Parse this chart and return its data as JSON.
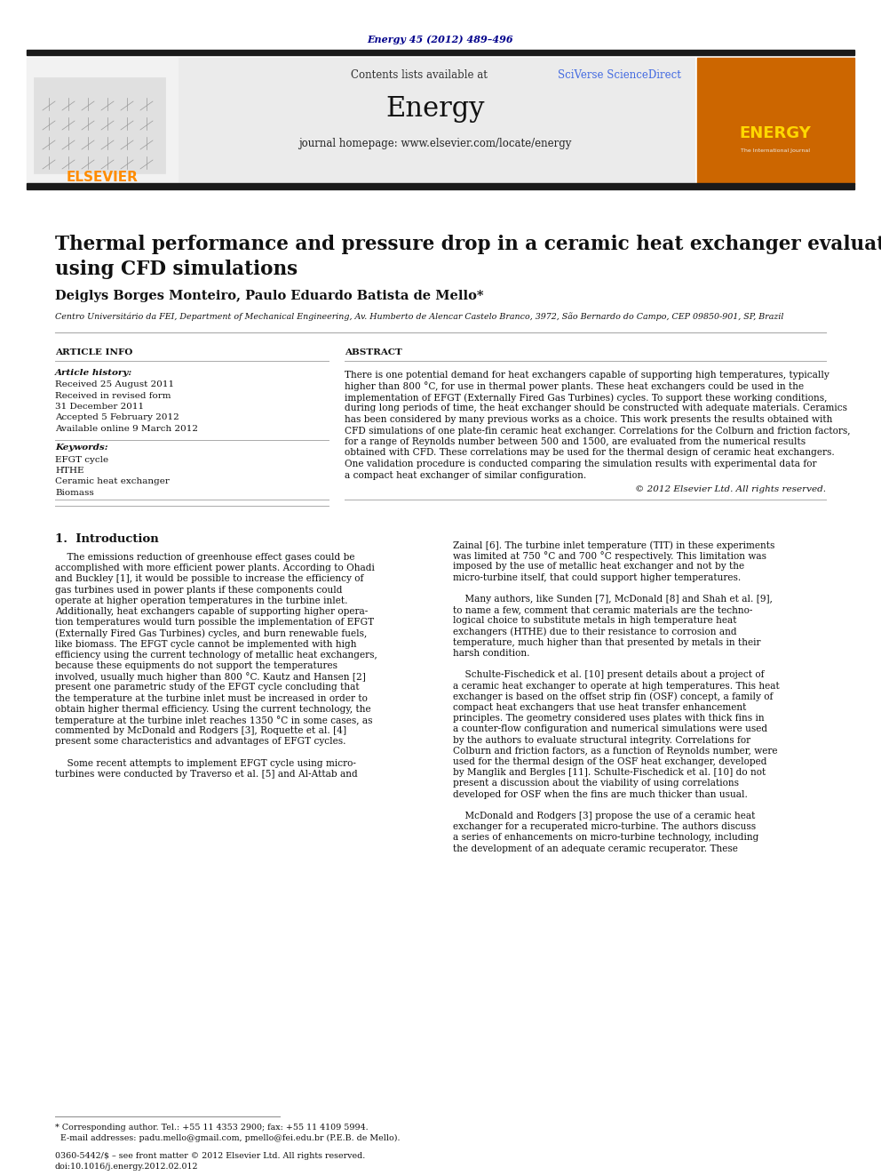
{
  "page_width": 9.92,
  "page_height": 13.23,
  "bg_color": "#ffffff",
  "header_journal_ref": "Energy 45 (2012) 489–496",
  "header_journal_ref_color": "#00008B",
  "header_bar_color": "#1a1a1a",
  "elsevier_color": "#FF8C00",
  "sciverse_color": "#4169E1",
  "paper_title_line1": "Thermal performance and pressure drop in a ceramic heat exchanger evaluated",
  "paper_title_line2": "using CFD simulations",
  "authors": "Deiglys Borges Monteiro, Paulo Eduardo Batista de Mello*",
  "affiliation": "Centro Universitário da FEI, Department of Mechanical Engineering, Av. Humberto de Alencar Castelo Branco, 3972, São Bernardo do Campo, CEP 09850-901, SP, Brazil",
  "article_info_title": "ARTICLE INFO",
  "article_history_label": "Article history:",
  "article_history_lines": [
    "Received 25 August 2011",
    "Received in revised form",
    "31 December 2011",
    "Accepted 5 February 2012",
    "Available online 9 March 2012"
  ],
  "keywords_label": "Keywords:",
  "keywords_lines": [
    "EFGT cycle",
    "HTHE",
    "Ceramic heat exchanger",
    "Biomass"
  ],
  "abstract_title": "ABSTRACT",
  "abstract_lines": [
    "There is one potential demand for heat exchangers capable of supporting high temperatures, typically",
    "higher than 800 °C, for use in thermal power plants. These heat exchangers could be used in the",
    "implementation of EFGT (Externally Fired Gas Turbines) cycles. To support these working conditions,",
    "during long periods of time, the heat exchanger should be constructed with adequate materials. Ceramics",
    "has been considered by many previous works as a choice. This work presents the results obtained with",
    "CFD simulations of one plate-fin ceramic heat exchanger. Correlations for the Colburn and friction factors,",
    "for a range of Reynolds number between 500 and 1500, are evaluated from the numerical results",
    "obtained with CFD. These correlations may be used for the thermal design of ceramic heat exchangers.",
    "One validation procedure is conducted comparing the simulation results with experimental data for",
    "a compact heat exchanger of similar configuration."
  ],
  "copyright_text": "© 2012 Elsevier Ltd. All rights reserved.",
  "section1_title": "1.  Introduction",
  "intro_left_lines": [
    "    The emissions reduction of greenhouse effect gases could be",
    "accomplished with more efficient power plants. According to Ohadi",
    "and Buckley [1], it would be possible to increase the efficiency of",
    "gas turbines used in power plants if these components could",
    "operate at higher operation temperatures in the turbine inlet.",
    "Additionally, heat exchangers capable of supporting higher opera-",
    "tion temperatures would turn possible the implementation of EFGT",
    "(Externally Fired Gas Turbines) cycles, and burn renewable fuels,",
    "like biomass. The EFGT cycle cannot be implemented with high",
    "efficiency using the current technology of metallic heat exchangers,",
    "because these equipments do not support the temperatures",
    "involved, usually much higher than 800 °C. Kautz and Hansen [2]",
    "present one parametric study of the EFGT cycle concluding that",
    "the temperature at the turbine inlet must be increased in order to",
    "obtain higher thermal efficiency. Using the current technology, the",
    "temperature at the turbine inlet reaches 1350 °C in some cases, as",
    "commented by McDonald and Rodgers [3], Roquette et al. [4]",
    "present some characteristics and advantages of EFGT cycles.",
    "",
    "    Some recent attempts to implement EFGT cycle using micro-",
    "turbines were conducted by Traverso et al. [5] and Al-Attab and"
  ],
  "intro_right_lines": [
    "Zainal [6]. The turbine inlet temperature (TIT) in these experiments",
    "was limited at 750 °C and 700 °C respectively. This limitation was",
    "imposed by the use of metallic heat exchanger and not by the",
    "micro-turbine itself, that could support higher temperatures.",
    "",
    "    Many authors, like Sunden [7], McDonald [8] and Shah et al. [9],",
    "to name a few, comment that ceramic materials are the techno-",
    "logical choice to substitute metals in high temperature heat",
    "exchangers (HTHE) due to their resistance to corrosion and",
    "temperature, much higher than that presented by metals in their",
    "harsh condition.",
    "",
    "    Schulte-Fischedick et al. [10] present details about a project of",
    "a ceramic heat exchanger to operate at high temperatures. This heat",
    "exchanger is based on the offset strip fin (OSF) concept, a family of",
    "compact heat exchangers that use heat transfer enhancement",
    "principles. The geometry considered uses plates with thick fins in",
    "a counter-flow configuration and numerical simulations were used",
    "by the authors to evaluate structural integrity. Correlations for",
    "Colburn and friction factors, as a function of Reynolds number, were",
    "used for the thermal design of the OSF heat exchanger, developed",
    "by Manglik and Bergles [11]. Schulte-Fischedick et al. [10] do not",
    "present a discussion about the viability of using correlations",
    "developed for OSF when the fins are much thicker than usual.",
    "",
    "    McDonald and Rodgers [3] propose the use of a ceramic heat",
    "exchanger for a recuperated micro-turbine. The authors discuss",
    "a series of enhancements on micro-turbine technology, including",
    "the development of an adequate ceramic recuperator. These"
  ],
  "footer_line1": "* Corresponding author. Tel.: +55 11 4353 2900; fax: +55 11 4109 5994.",
  "footer_line2": "  E-mail addresses: padu.mello@gmail.com, pmello@fei.edu.br (P.E.B. de Mello).",
  "footer_issn": "0360-5442/$ – see front matter © 2012 Elsevier Ltd. All rights reserved.",
  "footer_doi": "doi:10.1016/j.energy.2012.02.012"
}
